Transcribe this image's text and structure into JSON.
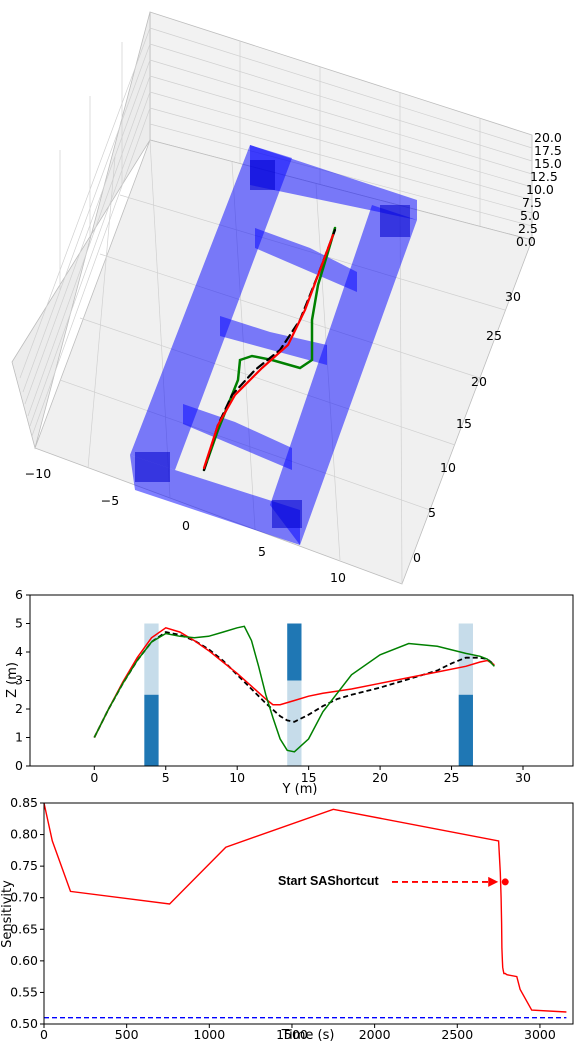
{
  "chart_data": [
    {
      "type": "line3d",
      "panel": "3d-view",
      "z_ticks": [
        "20.0",
        "17.5",
        "15.0",
        "12.5",
        "10.0",
        "7.5",
        "5.0",
        "2.5",
        "0.0"
      ],
      "y_ticks": [
        "30",
        "25",
        "20",
        "15",
        "10",
        "5",
        "0"
      ],
      "x_ticks": [
        "−10",
        "−5",
        "0",
        "5",
        "10"
      ],
      "obstacle_color": "#0000ff",
      "series_colors": {
        "reference": "#000000",
        "red": "#ff0000",
        "green": "#008000"
      }
    },
    {
      "type": "line",
      "panel": "yz-profile",
      "xlabel": "Y (m)",
      "ylabel": "Z (m)",
      "xlim": [
        -4.5,
        33.5
      ],
      "ylim": [
        0,
        6
      ],
      "xticks": [
        0,
        5,
        10,
        15,
        20,
        25,
        30
      ],
      "yticks": [
        0,
        1,
        2,
        3,
        4,
        5,
        6
      ],
      "gates": [
        {
          "y_min": 3.5,
          "y_max": 4.5,
          "bottom": 2.5,
          "top": 5.0,
          "opening_bottom": 2.5,
          "opening_top": 5.0
        },
        {
          "y_min": 13.5,
          "y_max": 14.5,
          "bottom": 3.0,
          "top": 5.0,
          "opening_bottom": 0.0,
          "opening_top": 3.0
        },
        {
          "y_min": 25.5,
          "y_max": 26.5,
          "bottom": 2.5,
          "top": 5.0,
          "opening_bottom": 2.5,
          "opening_top": 5.0
        }
      ],
      "gate_colors": {
        "solid": "#1f77b4",
        "opening": "#c6dcea"
      },
      "series": [
        {
          "color": "#000000",
          "style": "dashed",
          "x": [
            0,
            1,
            2,
            3,
            4,
            5,
            6,
            7,
            8,
            9,
            10,
            11,
            12,
            13,
            13.5,
            14,
            15,
            16,
            17,
            18,
            20,
            22,
            24,
            25,
            26,
            27,
            27.5,
            28
          ],
          "y": [
            1.0,
            2.0,
            2.9,
            3.7,
            4.35,
            4.7,
            4.6,
            4.4,
            4.1,
            3.7,
            3.2,
            2.7,
            2.2,
            1.75,
            1.6,
            1.55,
            1.8,
            2.1,
            2.35,
            2.5,
            2.75,
            3.05,
            3.35,
            3.6,
            3.8,
            3.8,
            3.75,
            3.55
          ]
        },
        {
          "color": "#ff0000",
          "style": "solid",
          "x": [
            0,
            1,
            2,
            3,
            4,
            5,
            6,
            7,
            8,
            9,
            10,
            11,
            12,
            12.5,
            13,
            14,
            15,
            16,
            18,
            20,
            22,
            24,
            26,
            27,
            27.5,
            28
          ],
          "y": [
            1.0,
            2.0,
            2.95,
            3.8,
            4.5,
            4.85,
            4.7,
            4.4,
            4.05,
            3.65,
            3.25,
            2.8,
            2.35,
            2.15,
            2.15,
            2.3,
            2.45,
            2.55,
            2.7,
            2.9,
            3.1,
            3.3,
            3.5,
            3.65,
            3.7,
            3.55
          ]
        },
        {
          "color": "#008000",
          "style": "solid",
          "x": [
            0,
            1,
            2,
            3,
            4,
            5,
            6,
            7,
            8,
            9,
            10,
            10.5,
            11,
            11.5,
            12,
            12.5,
            13,
            13.5,
            14,
            15,
            16,
            18,
            20,
            22,
            24,
            26,
            27,
            27.5,
            28
          ],
          "y": [
            1.0,
            2.0,
            2.9,
            3.7,
            4.35,
            4.65,
            4.55,
            4.5,
            4.55,
            4.7,
            4.85,
            4.9,
            4.4,
            3.5,
            2.5,
            1.7,
            0.95,
            0.55,
            0.5,
            0.95,
            1.9,
            3.2,
            3.9,
            4.3,
            4.2,
            3.95,
            3.85,
            3.75,
            3.5
          ]
        }
      ]
    },
    {
      "type": "line",
      "panel": "sensitivity",
      "xlabel": "Time (s)",
      "ylabel": "Sensitivity",
      "xlim": [
        0,
        3200
      ],
      "ylim": [
        0.5,
        0.85
      ],
      "xticks": [
        0,
        500,
        1000,
        1500,
        2000,
        2500,
        3000
      ],
      "yticks": [
        "0.50",
        "0.55",
        "0.60",
        "0.65",
        "0.70",
        "0.75",
        "0.80",
        "0.85"
      ],
      "threshold": {
        "value": 0.51,
        "color": "#0000ff",
        "style": "dashed"
      },
      "series": [
        {
          "color": "#ff0000",
          "style": "solid",
          "x": [
            0,
            50,
            160,
            760,
            1100,
            1750,
            2750,
            2760,
            2765,
            2768,
            2770,
            2773,
            2775,
            2778,
            2782,
            2790,
            2800,
            2860,
            2880,
            2950,
            3160
          ],
          "y": [
            0.86,
            0.79,
            0.71,
            0.69,
            0.78,
            0.84,
            0.79,
            0.74,
            0.7,
            0.66,
            0.62,
            0.6,
            0.59,
            0.585,
            0.58,
            0.58,
            0.578,
            0.575,
            0.555,
            0.522,
            0.519
          ]
        }
      ],
      "marker": {
        "x": 2790,
        "y": 0.725,
        "color": "#ff0000"
      },
      "annotation": {
        "text": "Start SAShortcut",
        "x": 1450,
        "y": 0.725
      }
    }
  ]
}
